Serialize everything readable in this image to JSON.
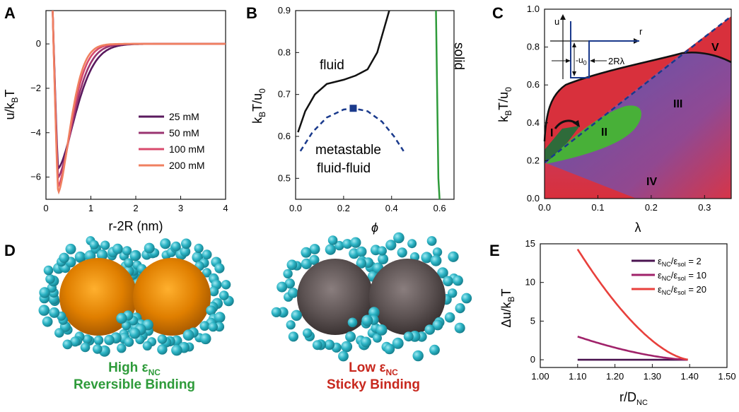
{
  "panels": {
    "A": {
      "letter": "A"
    },
    "B": {
      "letter": "B"
    },
    "C": {
      "letter": "C"
    },
    "D": {
      "letter": "D"
    },
    "E": {
      "letter": "E"
    }
  },
  "chart_data": [
    {
      "panel": "A",
      "type": "line",
      "xlabel": "r-2R (nm)",
      "ylabel_base": "u/k",
      "ylabel_sub": "B",
      "ylabel_tail": "T",
      "xlim": [
        0,
        4
      ],
      "ylim": [
        -7,
        1.5
      ],
      "xticks": [
        "0",
        "1",
        "2",
        "3",
        "4"
      ],
      "yticks": [
        "0",
        "−2",
        "−4",
        "−6"
      ],
      "series": [
        {
          "name": "25 mM",
          "color": "#5a1a5e",
          "min_x": 0.27,
          "min_y": -5.6,
          "decay": 0.55
        },
        {
          "name": "50 mM",
          "color": "#9a3470",
          "min_x": 0.27,
          "min_y": -6.0,
          "decay": 0.48
        },
        {
          "name": "100 mM",
          "color": "#d84a6c",
          "min_x": 0.27,
          "min_y": -6.4,
          "decay": 0.42
        },
        {
          "name": "200 mM",
          "color": "#f08060",
          "min_x": 0.27,
          "min_y": -6.7,
          "decay": 0.38
        }
      ]
    },
    {
      "panel": "B",
      "type": "line",
      "xlabel": "ϕ",
      "ylabel_base": "k",
      "ylabel_sub": "B",
      "ylabel_mid": "T/u",
      "ylabel_sub2": "0",
      "xlim": [
        0,
        0.66
      ],
      "ylim": [
        0.45,
        0.9
      ],
      "xticks": [
        "0.0",
        "0.2",
        "0.4",
        "0.6"
      ],
      "yticks": [
        "0.5",
        "0.6",
        "0.7",
        "0.8",
        "0.9"
      ],
      "annotations": {
        "fluid": "fluid",
        "solid": "solid",
        "meta1": "metastable",
        "meta2": "fluid-fluid"
      },
      "fluid_line": [
        [
          0.01,
          0.61
        ],
        [
          0.04,
          0.66
        ],
        [
          0.08,
          0.7
        ],
        [
          0.13,
          0.725
        ],
        [
          0.2,
          0.735
        ],
        [
          0.25,
          0.745
        ],
        [
          0.3,
          0.76
        ],
        [
          0.34,
          0.8
        ],
        [
          0.37,
          0.86
        ],
        [
          0.39,
          0.9
        ]
      ],
      "metastable": [
        [
          0.02,
          0.565
        ],
        [
          0.07,
          0.61
        ],
        [
          0.13,
          0.645
        ],
        [
          0.2,
          0.664
        ],
        [
          0.24,
          0.667
        ],
        [
          0.3,
          0.66
        ],
        [
          0.36,
          0.635
        ],
        [
          0.41,
          0.6
        ],
        [
          0.45,
          0.565
        ]
      ],
      "critical_point": [
        0.24,
        0.667
      ],
      "solid_line": [
        [
          0.585,
          0.9
        ],
        [
          0.59,
          0.7
        ],
        [
          0.595,
          0.5
        ],
        [
          0.6,
          0.45
        ]
      ]
    },
    {
      "panel": "C",
      "type": "heatmap",
      "xlabel": "λ",
      "ylabel_base": "k",
      "ylabel_sub": "B",
      "ylabel_mid": "T/u",
      "ylabel_sub2": "0",
      "xlim": [
        0,
        0.35
      ],
      "ylim": [
        0,
        1.0
      ],
      "xticks": [
        "0.0",
        "0.1",
        "0.2",
        "0.3"
      ],
      "yticks": [
        "0.0",
        "0.2",
        "0.4",
        "0.6",
        "0.8",
        "1.0"
      ],
      "regions": [
        "I",
        "II",
        "III",
        "IV",
        "V"
      ],
      "inset": {
        "u": "u",
        "r": "r",
        "u0": "-u",
        "u0_sub": "0",
        "width": "2Rλ"
      }
    },
    {
      "panel": "E",
      "type": "line",
      "xlabel_base": "r/D",
      "xlabel_sub": "NC",
      "ylabel_base": "Δu/k",
      "ylabel_sub": "B",
      "ylabel_tail": "T",
      "xlim": [
        1.0,
        1.5
      ],
      "ylim": [
        -1,
        15
      ],
      "xticks": [
        "1.00",
        "1.10",
        "1.20",
        "1.30",
        "1.40",
        "1.50"
      ],
      "yticks": [
        "0",
        "5",
        "10",
        "15"
      ],
      "series": [
        {
          "name": "ε",
          "sub1": "NC",
          "mid": "/ε",
          "sub2": "sol",
          "val": " = 2",
          "color": "#4a1450",
          "start": 0.0
        },
        {
          "name": "ε",
          "sub1": "NC",
          "mid": "/ε",
          "sub2": "sol",
          "val": " = 10",
          "color": "#a0226a",
          "start": 3.0
        },
        {
          "name": "ε",
          "sub1": "NC",
          "mid": "/ε",
          "sub2": "sol",
          "val": " = 20",
          "color": "#e8403c",
          "start": 14.3
        }
      ]
    }
  ],
  "panelD": {
    "left_caption1": "High ε",
    "left_caption1_sub": "NC",
    "left_caption2": "Reversible Binding",
    "right_caption1": "Low ε",
    "right_caption1_sub": "NC",
    "right_caption2": "Sticky Binding"
  },
  "colors": {
    "blue": "#1a3a8c",
    "green": "#2e9b3a",
    "red": "#c8281e"
  }
}
